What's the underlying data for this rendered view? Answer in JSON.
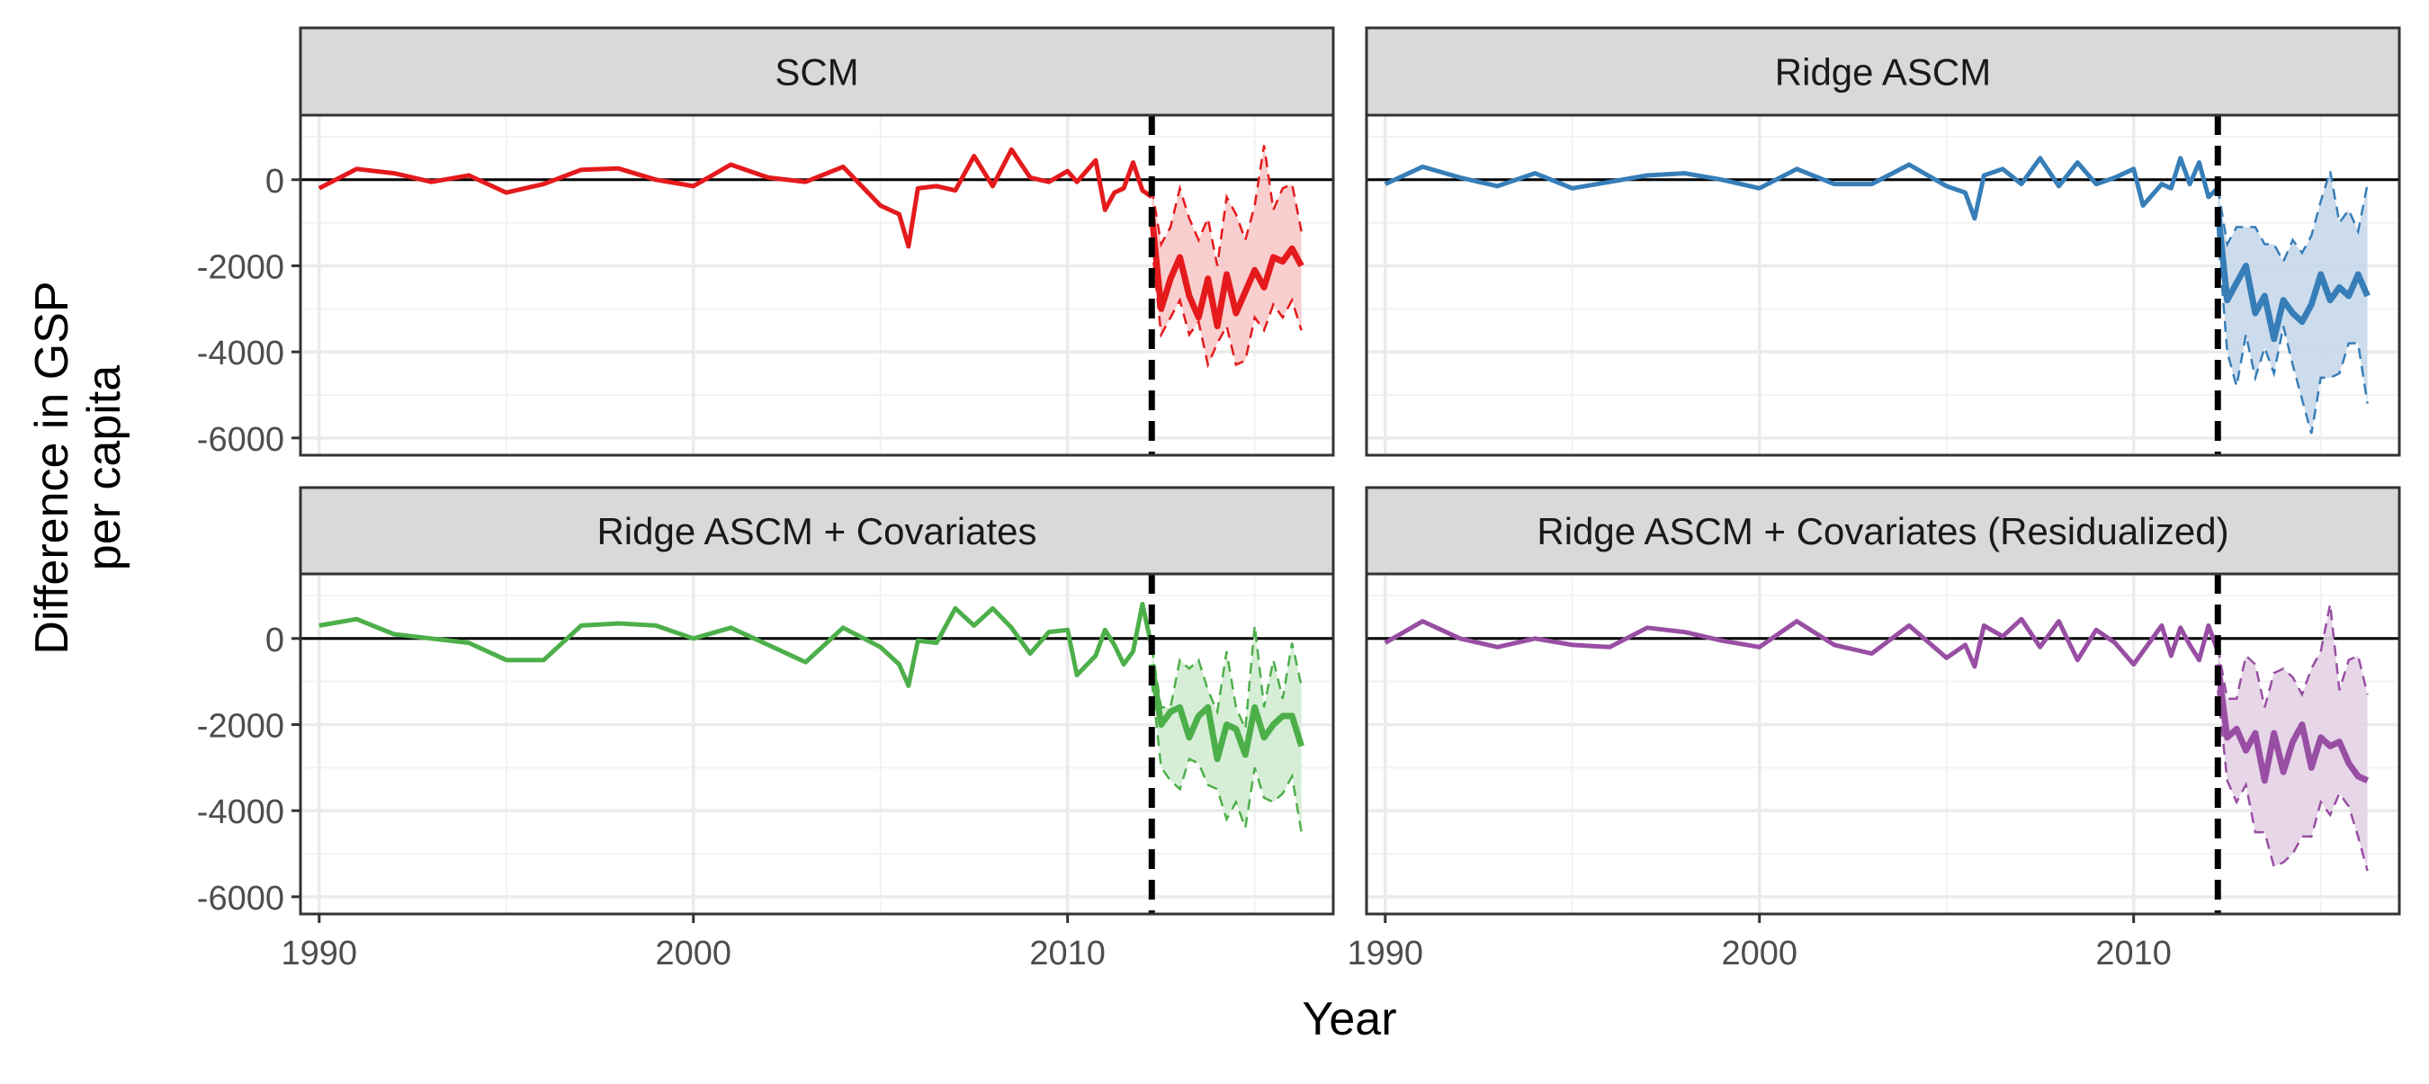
{
  "chart_data": {
    "type": "line",
    "layout": "facet-grid-2x2",
    "xlabel": "Year",
    "ylabel_lines": [
      "Difference in GSP",
      "per capita"
    ],
    "xlim": [
      1989.5,
      2017.1
    ],
    "ylim": [
      -6400,
      1500
    ],
    "x_ticks": [
      1990,
      2000,
      2010
    ],
    "x_tick_labels": [
      "1990",
      "2000",
      "2010"
    ],
    "y_ticks": [
      0,
      -2000,
      -4000,
      -6000
    ],
    "y_tick_labels": [
      "0",
      "-2000",
      "-4000",
      "-6000"
    ],
    "treatment_year": 2012.25,
    "panels": [
      {
        "title": "SCM",
        "color": "#e41a1c",
        "fill": "#f8c9c9",
        "pre_x": [
          1990,
          1991,
          1992,
          1993,
          1994,
          1995,
          1996,
          1997,
          1998,
          1999,
          2000,
          2001,
          2002,
          2003,
          2004,
          2005,
          2005.5,
          2005.75,
          2006,
          2006.5,
          2007,
          2007.5,
          2008,
          2008.5,
          2009,
          2009.5,
          2010,
          2010.25,
          2010.75,
          2011,
          2011.25,
          2011.5,
          2011.75,
          2012,
          2012.25
        ],
        "pre_y": [
          -200,
          250,
          150,
          -50,
          100,
          -300,
          -100,
          230,
          260,
          0,
          -150,
          350,
          50,
          -50,
          300,
          -600,
          -800,
          -1550,
          -200,
          -150,
          -250,
          550,
          -150,
          700,
          50,
          -50,
          200,
          -50,
          450,
          -700,
          -300,
          -200,
          400,
          -250,
          -400
        ],
        "post_x": [
          2012.25,
          2012.5,
          2012.75,
          2013,
          2013.25,
          2013.5,
          2013.75,
          2014,
          2014.25,
          2014.5,
          2014.75,
          2015,
          2015.25,
          2015.5,
          2015.75,
          2016,
          2016.25
        ],
        "post_y": [
          -800,
          -3000,
          -2300,
          -1800,
          -2700,
          -3200,
          -2300,
          -3400,
          -2200,
          -3100,
          -2600,
          -2100,
          -2500,
          -1800,
          -1900,
          -1600,
          -2000
        ],
        "lower": [
          -1500,
          -3600,
          -3200,
          -2800,
          -3600,
          -3300,
          -4300,
          -3800,
          -3400,
          -4300,
          -4200,
          -3200,
          -3500,
          -2900,
          -3200,
          -2800,
          -3500
        ],
        "upper": [
          -200,
          -1500,
          -1100,
          -200,
          -900,
          -1400,
          -900,
          -2000,
          -400,
          -800,
          -1400,
          -600,
          800,
          -700,
          -200,
          -100,
          -1200
        ]
      },
      {
        "title": "Ridge ASCM",
        "color": "#377eb8",
        "fill": "#c8d8ea",
        "pre_x": [
          1990,
          1991,
          1992,
          1993,
          1994,
          1995,
          1996,
          1997,
          1998,
          1999,
          2000,
          2001,
          2002,
          2003,
          2004,
          2005,
          2005.5,
          2005.75,
          2006,
          2006.5,
          2007,
          2007.5,
          2008,
          2008.5,
          2009,
          2009.5,
          2010,
          2010.25,
          2010.75,
          2011,
          2011.25,
          2011.5,
          2011.75,
          2012,
          2012.25
        ],
        "pre_y": [
          -100,
          300,
          50,
          -150,
          150,
          -200,
          -50,
          100,
          150,
          0,
          -200,
          250,
          -100,
          -100,
          350,
          -150,
          -300,
          -900,
          100,
          250,
          -100,
          500,
          -150,
          400,
          -100,
          50,
          250,
          -600,
          -100,
          -200,
          500,
          -100,
          400,
          -400,
          -200
        ],
        "post_x": [
          2012.25,
          2012.5,
          2012.75,
          2013,
          2013.25,
          2013.5,
          2013.75,
          2014,
          2014.25,
          2014.5,
          2014.75,
          2015,
          2015.25,
          2015.5,
          2015.75,
          2016,
          2016.25
        ],
        "post_y": [
          -700,
          -2800,
          -2400,
          -2000,
          -3100,
          -2700,
          -3700,
          -2800,
          -3100,
          -3300,
          -2900,
          -2200,
          -2800,
          -2500,
          -2700,
          -2200,
          -2700
        ],
        "lower": [
          -1200,
          -4000,
          -4800,
          -3600,
          -4600,
          -3900,
          -4500,
          -3400,
          -4300,
          -5100,
          -5900,
          -4600,
          -4600,
          -4500,
          -3800,
          -3800,
          -5200
        ],
        "upper": [
          -200,
          -1500,
          -1100,
          -1100,
          -1100,
          -1500,
          -1500,
          -1900,
          -1400,
          -1700,
          -1300,
          -500,
          200,
          -1000,
          -700,
          -1200,
          -100
        ]
      },
      {
        "title": "Ridge ASCM + Covariates",
        "color": "#4daf4a",
        "fill": "#d3ecd1",
        "pre_x": [
          1990,
          1991,
          1992,
          1993,
          1994,
          1995,
          1996,
          1997,
          1998,
          1999,
          2000,
          2001,
          2002,
          2003,
          2004,
          2005,
          2005.5,
          2005.75,
          2006,
          2006.5,
          2007,
          2007.5,
          2008,
          2008.5,
          2009,
          2009.5,
          2010,
          2010.25,
          2010.75,
          2011,
          2011.25,
          2011.5,
          2011.75,
          2012,
          2012.25
        ],
        "pre_y": [
          300,
          450,
          100,
          0,
          -100,
          -500,
          -500,
          300,
          350,
          300,
          0,
          250,
          -150,
          -550,
          250,
          -200,
          -600,
          -1100,
          -50,
          -100,
          700,
          300,
          700,
          250,
          -350,
          150,
          200,
          -850,
          -400,
          200,
          -150,
          -600,
          -300,
          800,
          -200
        ],
        "post_x": [
          2012.25,
          2012.5,
          2012.75,
          2013,
          2013.25,
          2013.5,
          2013.75,
          2014,
          2014.25,
          2014.5,
          2014.75,
          2015,
          2015.25,
          2015.5,
          2015.75,
          2016,
          2016.25
        ],
        "post_y": [
          -600,
          -2000,
          -1700,
          -1600,
          -2300,
          -1800,
          -1600,
          -2800,
          -2000,
          -2100,
          -2700,
          -1600,
          -2300,
          -2000,
          -1800,
          -1800,
          -2500
        ],
        "lower": [
          -1000,
          -3000,
          -3300,
          -3500,
          -2800,
          -2900,
          -3400,
          -3500,
          -4200,
          -3800,
          -4400,
          -3000,
          -3700,
          -3800,
          -3600,
          -3200,
          -4500
        ],
        "upper": [
          -200,
          -1600,
          -1600,
          -500,
          -700,
          -500,
          -1200,
          -1700,
          -300,
          -1600,
          -2100,
          300,
          -1600,
          -500,
          -1400,
          -100,
          -1100
        ]
      },
      {
        "title": "Ridge ASCM + Covariates (Residualized)",
        "color": "#984ea3",
        "fill": "#e3d1e6",
        "pre_x": [
          1990,
          1991,
          1992,
          1993,
          1994,
          1995,
          1996,
          1997,
          1998,
          1999,
          2000,
          2001,
          2002,
          2003,
          2004,
          2005,
          2005.5,
          2005.75,
          2006,
          2006.5,
          2007,
          2007.5,
          2008,
          2008.5,
          2009,
          2009.5,
          2010,
          2010.25,
          2010.75,
          2011,
          2011.25,
          2011.5,
          2011.75,
          2012,
          2012.25
        ],
        "pre_y": [
          -100,
          400,
          0,
          -200,
          0,
          -150,
          -200,
          250,
          150,
          -50,
          -200,
          400,
          -150,
          -350,
          300,
          -450,
          -150,
          -650,
          300,
          50,
          450,
          -200,
          400,
          -500,
          200,
          -100,
          -600,
          -300,
          300,
          -400,
          250,
          -150,
          -500,
          300,
          -300
        ],
        "post_x": [
          2012.25,
          2012.5,
          2012.75,
          2013,
          2013.25,
          2013.5,
          2013.75,
          2014,
          2014.25,
          2014.5,
          2014.75,
          2015,
          2015.25,
          2015.5,
          2015.75,
          2016,
          2016.25
        ],
        "post_y": [
          -600,
          -2300,
          -2100,
          -2600,
          -2200,
          -3300,
          -2200,
          -3100,
          -2400,
          -2000,
          -3000,
          -2300,
          -2500,
          -2400,
          -2900,
          -3200,
          -3300
        ],
        "lower": [
          -1200,
          -3300,
          -3800,
          -3400,
          -4500,
          -4500,
          -5300,
          -5200,
          -5000,
          -4600,
          -4600,
          -3800,
          -4100,
          -3600,
          -3900,
          -4600,
          -5400
        ],
        "upper": [
          -200,
          -1400,
          -1400,
          -400,
          -600,
          -1600,
          -800,
          -700,
          -900,
          -1300,
          -700,
          -300,
          800,
          -1200,
          -500,
          -400,
          -1300
        ]
      }
    ]
  }
}
